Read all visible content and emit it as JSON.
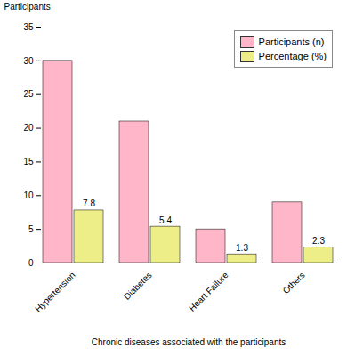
{
  "chart_data": {
    "type": "bar",
    "categories": [
      "Hypertension",
      "Diabetes",
      "Heart Failure",
      "Others"
    ],
    "series": [
      {
        "name": "Participants (n)",
        "color": "#FFB6C8",
        "values": [
          30,
          21,
          5,
          9
        ]
      },
      {
        "name": "Percentage (%)",
        "color": "#EEEE88",
        "values": [
          7.8,
          5.4,
          1.3,
          2.3
        ],
        "data_labels": true
      }
    ],
    "xlabel": "Chronic diseases associated with the participants",
    "ylabel": "Participants",
    "ylim": [
      0,
      35
    ],
    "yticks": [
      0,
      5,
      10,
      15,
      20,
      25,
      30,
      35
    ],
    "grid": false,
    "legend": "upper right"
  }
}
